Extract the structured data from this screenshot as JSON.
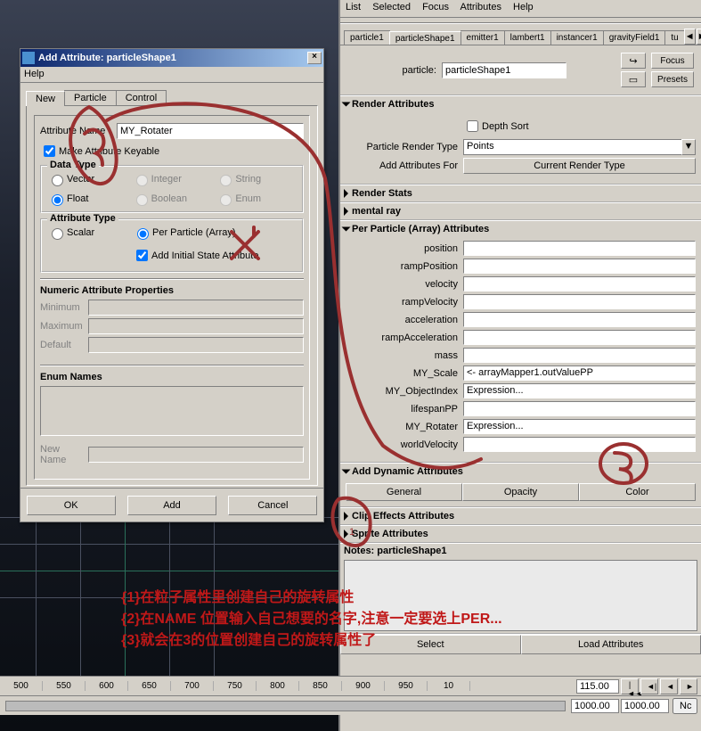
{
  "dialog": {
    "title": "Add Attribute: particleShape1",
    "menuHelp": "Help",
    "tabs": {
      "new": "New",
      "particle": "Particle",
      "control": "Control"
    },
    "attrNameLabel": "Attribute Name",
    "attrNameValue": "MY_Rotater",
    "keyableLabel": "Make Attribute Keyable",
    "keyableChecked": true,
    "dataType": {
      "title": "Data Type",
      "vector": "Vector",
      "integer": "Integer",
      "string": "String",
      "float": "Float",
      "boolean": "Boolean",
      "enum": "Enum",
      "selected": "float"
    },
    "attrType": {
      "title": "Attribute Type",
      "scalar": "Scalar",
      "perParticle": "Per Particle (Array)",
      "addInitial": "Add Initial State Attribute",
      "selected": "perParticle",
      "addInitialChecked": true
    },
    "numeric": {
      "title": "Numeric Attribute Properties",
      "min": "Minimum",
      "max": "Maximum",
      "default": "Default"
    },
    "enum": {
      "title": "Enum Names",
      "newName": "New Name"
    },
    "buttons": {
      "ok": "OK",
      "add": "Add",
      "cancel": "Cancel"
    }
  },
  "rightPanel": {
    "menu": {
      "list": "List",
      "selected": "Selected",
      "focus": "Focus",
      "attributes": "Attributes",
      "help": "Help"
    },
    "tabs": [
      "particle1",
      "particleShape1",
      "emitter1",
      "lambert1",
      "instancer1",
      "gravityField1",
      "tu"
    ],
    "activeTab": "particleShape1",
    "particleLabel": "particle:",
    "particleName": "particleShape1",
    "focusBtn": "Focus",
    "presetsBtn": "Presets",
    "renderAttr": {
      "title": "Render Attributes",
      "depthSort": "Depth Sort",
      "depthSortChecked": false,
      "renderTypeLabel": "Particle Render Type",
      "renderTypeValue": "Points",
      "addAttrForLabel": "Add Attributes For",
      "addAttrForBtn": "Current Render Type"
    },
    "renderStats": "Render Stats",
    "mentalRay": "mental ray",
    "ppAttr": {
      "title": "Per Particle (Array) Attributes",
      "rows": [
        {
          "label": "position",
          "value": ""
        },
        {
          "label": "rampPosition",
          "value": ""
        },
        {
          "label": "velocity",
          "value": ""
        },
        {
          "label": "rampVelocity",
          "value": ""
        },
        {
          "label": "acceleration",
          "value": ""
        },
        {
          "label": "rampAcceleration",
          "value": ""
        },
        {
          "label": "mass",
          "value": ""
        },
        {
          "label": "MY_Scale",
          "value": "<- arrayMapper1.outValuePP"
        },
        {
          "label": "MY_ObjectIndex",
          "value": "Expression..."
        },
        {
          "label": "lifespanPP",
          "value": ""
        },
        {
          "label": "MY_Rotater",
          "value": "Expression..."
        },
        {
          "label": "worldVelocity",
          "value": ""
        }
      ]
    },
    "addDyn": {
      "title": "Add Dynamic Attributes",
      "general": "General",
      "opacity": "Opacity",
      "color": "Color"
    },
    "clipEffects": "Clip Effects Attributes",
    "spriteAttr": "Sprite Attributes",
    "notesTitle": "Notes: particleShape1",
    "bottom": {
      "select": "Select",
      "loadAttr": "Load Attributes"
    }
  },
  "ruler": {
    "ticks": [
      "500",
      "550",
      "600",
      "650",
      "700",
      "750",
      "800",
      "850",
      "900",
      "950",
      "10"
    ],
    "current": "115.00",
    "range1": "1000.00",
    "range2": "1000.00",
    "noChar": "Nc"
  },
  "annotations": {
    "l1": "{1}在粒子属性里创建自己的旋转属性",
    "l2": "{2}在NAME 位置输入自己想要的名字,注意一定要选上PER...",
    "l3": "{3}就会在3的位置创建自己的旋转属性了",
    "color": "#c01818"
  }
}
